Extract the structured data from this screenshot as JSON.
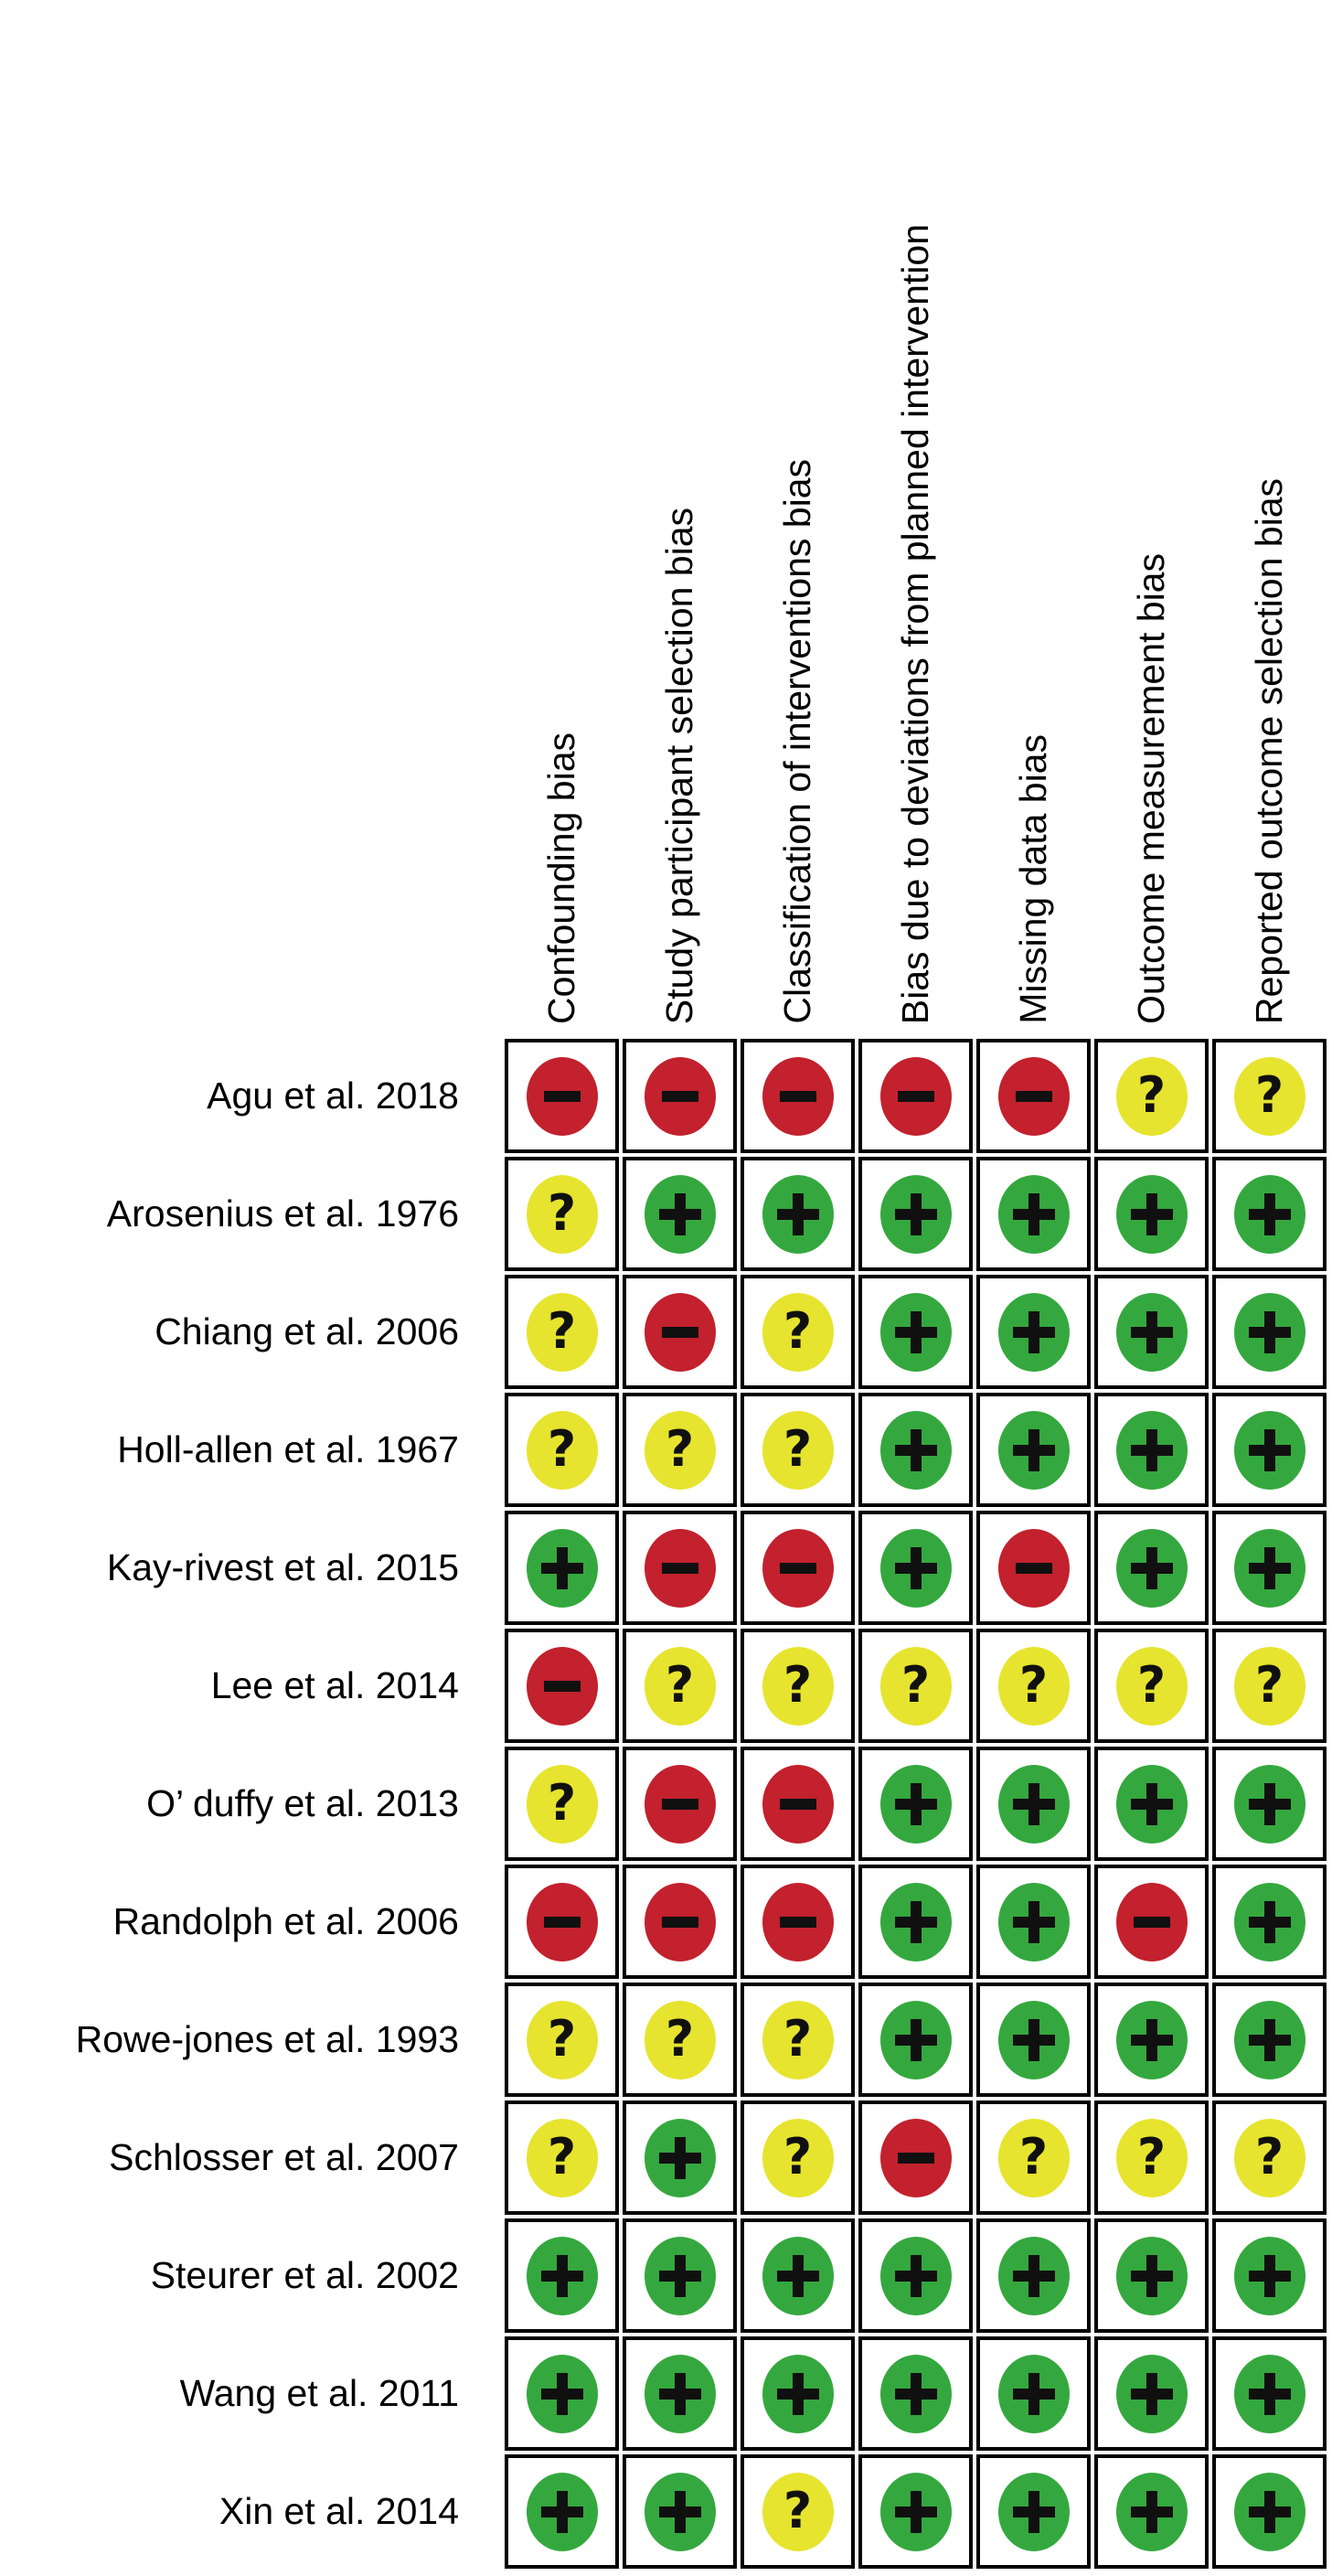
{
  "chart_data": {
    "type": "heatmap",
    "description": "Risk of bias judgment matrix (traffic-light plot): studies by bias domain",
    "columns": [
      "Confounding bias",
      "Study participant selection bias",
      "Classification of interventions bias",
      "Bias due to deviations from planned intervention",
      "Missing data bias",
      "Outcome measurement bias",
      "Reported outcome selection bias"
    ],
    "rows": [
      {
        "study": "Agu et al. 2018",
        "judgments": [
          "-",
          "-",
          "-",
          "-",
          "-",
          "?",
          "?"
        ]
      },
      {
        "study": "Arosenius et al. 1976",
        "judgments": [
          "?",
          "+",
          "+",
          "+",
          "+",
          "+",
          "+"
        ]
      },
      {
        "study": "Chiang et al. 2006",
        "judgments": [
          "?",
          "-",
          "?",
          "+",
          "+",
          "+",
          "+"
        ]
      },
      {
        "study": "Holl-allen et al. 1967",
        "judgments": [
          "?",
          "?",
          "?",
          "+",
          "+",
          "+",
          "+"
        ]
      },
      {
        "study": "Kay-rivest et al. 2015",
        "judgments": [
          "+",
          "-",
          "-",
          "+",
          "-",
          "+",
          "+"
        ]
      },
      {
        "study": "Lee et al. 2014",
        "judgments": [
          "-",
          "?",
          "?",
          "?",
          "?",
          "?",
          "?"
        ]
      },
      {
        "study": "O’ duffy et al. 2013",
        "judgments": [
          "?",
          "-",
          "-",
          "+",
          "+",
          "+",
          "+"
        ]
      },
      {
        "study": "Randolph et al. 2006",
        "judgments": [
          "-",
          "-",
          "-",
          "+",
          "+",
          "-",
          "+"
        ]
      },
      {
        "study": "Rowe-jones et al. 1993",
        "judgments": [
          "?",
          "?",
          "?",
          "+",
          "+",
          "+",
          "+"
        ]
      },
      {
        "study": "Schlosser et al. 2007",
        "judgments": [
          "?",
          "+",
          "?",
          "-",
          "?",
          "?",
          "?"
        ]
      },
      {
        "study": "Steurer et al. 2002",
        "judgments": [
          "+",
          "+",
          "+",
          "+",
          "+",
          "+",
          "+"
        ]
      },
      {
        "study": "Wang et al. 2011",
        "judgments": [
          "+",
          "+",
          "+",
          "+",
          "+",
          "+",
          "+"
        ]
      },
      {
        "study": "Xin et al. 2014",
        "judgments": [
          "+",
          "+",
          "?",
          "+",
          "+",
          "+",
          "+"
        ]
      }
    ],
    "legend": {
      "+": {
        "symbol": "+",
        "color": "#34a83e"
      },
      "-": {
        "symbol": "−",
        "color": "#c2212d"
      },
      "?": {
        "symbol": "?",
        "color": "#e6e42e"
      }
    },
    "layout": {
      "grid_line_color": "#000000",
      "background_color": "#ffffff",
      "symbol_color": "#101010"
    }
  }
}
